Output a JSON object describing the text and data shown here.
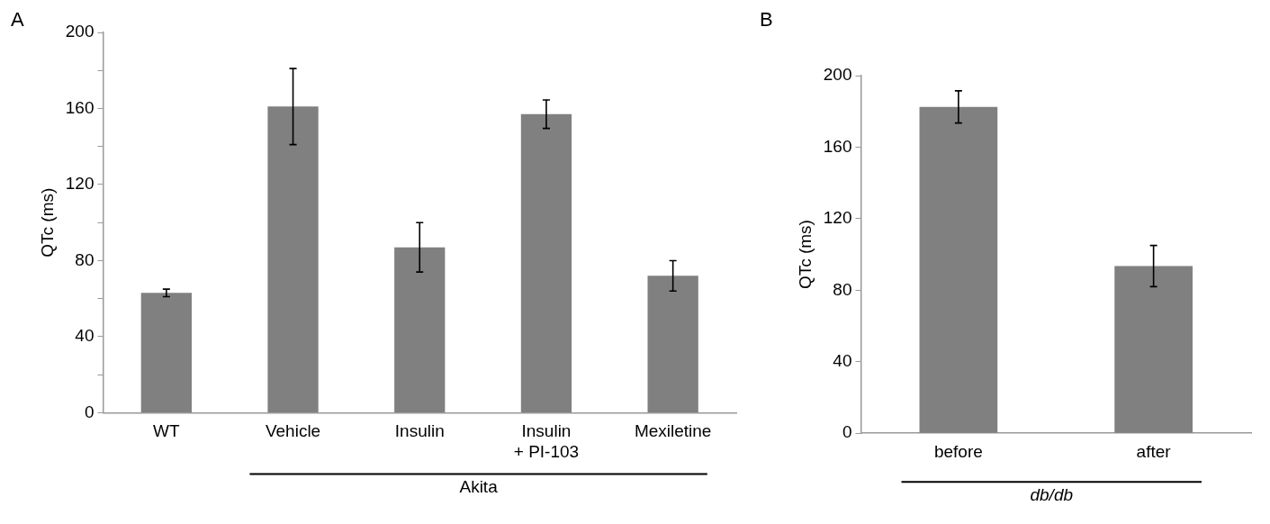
{
  "chart_data": [
    {
      "type": "bar",
      "title": "A",
      "ylabel": "QTc (ms)",
      "categories": [
        "WT",
        "Vehicle",
        "Insulin",
        "Insulin\n+ PI-103",
        "Mexiletine"
      ],
      "values": [
        63,
        161,
        87,
        157,
        72
      ],
      "errors": [
        2,
        20,
        13,
        7.5,
        8
      ],
      "color": "#808080",
      "ylim": [
        0,
        200
      ],
      "yticks": [
        0,
        {
          "value": 20,
          "label": null
        },
        40,
        {
          "value": 60,
          "label": null
        },
        80,
        {
          "value": 100,
          "label": null
        },
        120,
        {
          "value": 140,
          "label": null
        },
        160,
        {
          "value": 180,
          "label": null
        },
        200
      ],
      "grid": false,
      "legend": false,
      "annotations": [
        "Akita"
      ]
    },
    {
      "type": "bar",
      "title": "B",
      "ylabel": "QTc (ms)",
      "categories": [
        "before",
        "after"
      ],
      "values": [
        182.5,
        93.5
      ],
      "errors": [
        9,
        11.5
      ],
      "color": "#808080",
      "ylim": [
        0,
        200
      ],
      "yticks": [
        0,
        40,
        80,
        120,
        160,
        200
      ],
      "grid": false,
      "legend": false,
      "annotations": [
        "db/db"
      ]
    }
  ]
}
